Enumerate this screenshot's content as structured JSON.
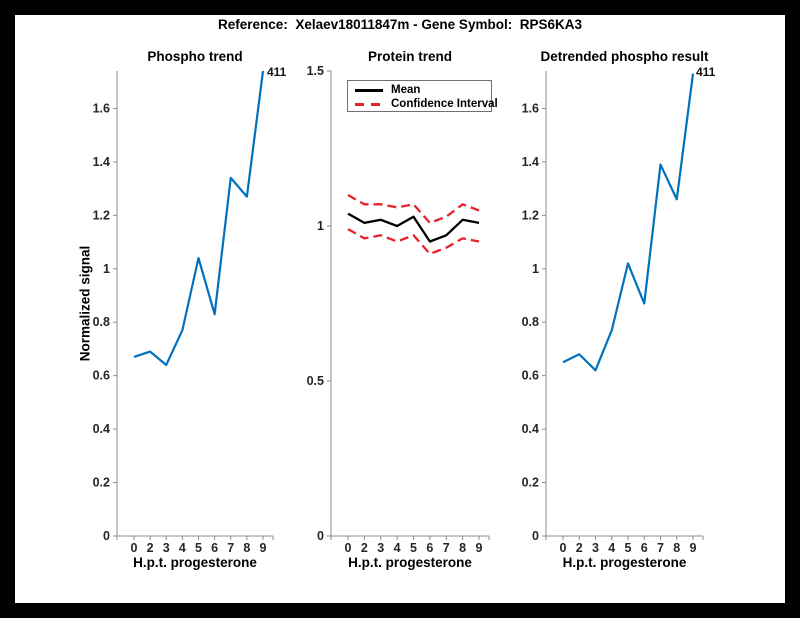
{
  "window": {
    "frame_color": "#000000",
    "canvas_color": "#ffffff"
  },
  "figure_title": "Reference:  Xelaev18011847m - Gene Symbol:  RPS6KA3",
  "colors": {
    "phospho_blue": "#0072BD",
    "ci_red": "#E8222A",
    "mean_black": "#000000",
    "axis_gray": "#8c8c8c",
    "tick_text": "#262626"
  },
  "chart_data": [
    {
      "type": "line",
      "title": "Phospho trend",
      "xlabel": "H.p.t. progesterone",
      "ylabel": "Normalized signal",
      "x_ticklabels": [
        "0",
        "2",
        "3",
        "4",
        "5",
        "6",
        "7",
        "8",
        "9"
      ],
      "yticks": [
        0,
        0.2,
        0.4,
        0.6,
        0.8,
        1,
        1.2,
        1.4,
        1.6
      ],
      "ytick_labels": [
        "0",
        "0.2",
        "0.4",
        "0.6",
        "0.8",
        "1",
        "1.2",
        "1.4",
        "1.6"
      ],
      "ylim": [
        0,
        1.74
      ],
      "grid": false,
      "series": [
        {
          "name": "phospho_signal",
          "color": "#0072BD",
          "style": "solid",
          "width": 2.2,
          "values": [
            0.67,
            0.69,
            0.64,
            0.77,
            1.04,
            0.83,
            1.34,
            1.27,
            1.74
          ]
        }
      ],
      "annotation": {
        "text": "411"
      }
    },
    {
      "type": "line",
      "title": "Protein trend",
      "xlabel": "H.p.t. progesterone",
      "ylabel": "",
      "x_ticklabels": [
        "0",
        "2",
        "3",
        "4",
        "5",
        "6",
        "7",
        "8",
        "9"
      ],
      "yticks": [
        0,
        0.5,
        1,
        1.5
      ],
      "ytick_labels": [
        "0",
        "0.5",
        "1",
        "1.5"
      ],
      "ylim": [
        0,
        1.5
      ],
      "grid": false,
      "legend": {
        "position": "upper-left",
        "entries": [
          {
            "label": "Mean",
            "color": "#000000",
            "style": "solid"
          },
          {
            "label": "Confidence Interval",
            "color": "#E8222A",
            "style": "dashed"
          }
        ]
      },
      "series": [
        {
          "name": "mean",
          "color": "#000000",
          "style": "solid",
          "width": 2.3,
          "values": [
            1.04,
            1.01,
            1.02,
            1.0,
            1.03,
            0.95,
            0.97,
            1.02,
            1.01
          ]
        },
        {
          "name": "ci_upper",
          "color": "#E8222A",
          "style": "dashed",
          "width": 2.3,
          "values": [
            1.1,
            1.07,
            1.07,
            1.06,
            1.07,
            1.01,
            1.03,
            1.07,
            1.05
          ]
        },
        {
          "name": "ci_lower",
          "color": "#E8222A",
          "style": "dashed",
          "width": 2.3,
          "values": [
            0.99,
            0.96,
            0.97,
            0.95,
            0.97,
            0.91,
            0.93,
            0.96,
            0.95
          ]
        }
      ]
    },
    {
      "type": "line",
      "title": "Detrended phospho result",
      "xlabel": "H.p.t. progesterone",
      "ylabel": "",
      "x_ticklabels": [
        "0",
        "2",
        "3",
        "4",
        "5",
        "6",
        "7",
        "8",
        "9"
      ],
      "yticks": [
        0,
        0.2,
        0.4,
        0.6,
        0.8,
        1,
        1.2,
        1.4,
        1.6
      ],
      "ytick_labels": [
        "0",
        "0.2",
        "0.4",
        "0.6",
        "0.8",
        "1",
        "1.2",
        "1.4",
        "1.6"
      ],
      "ylim": [
        0,
        1.74
      ],
      "grid": false,
      "series": [
        {
          "name": "detrended_phospho",
          "color": "#0072BD",
          "style": "solid",
          "width": 2.2,
          "values": [
            0.65,
            0.68,
            0.62,
            0.77,
            1.02,
            0.87,
            1.39,
            1.26,
            1.73
          ]
        }
      ],
      "annotation": {
        "text": "411"
      }
    }
  ]
}
